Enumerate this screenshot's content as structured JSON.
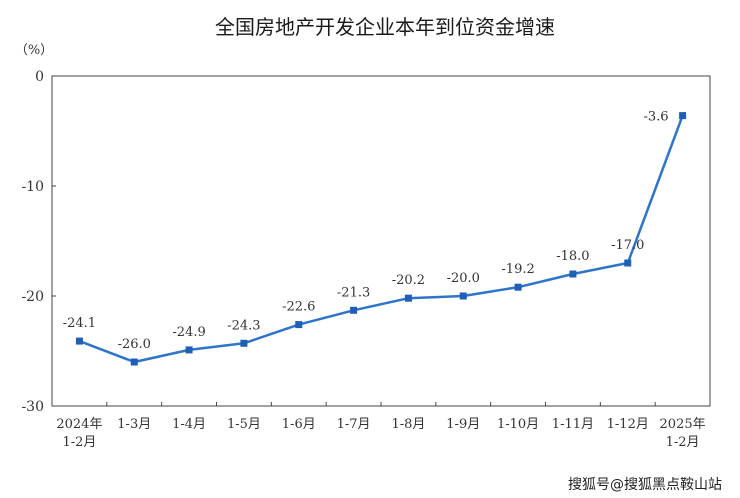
{
  "watermark": "搜狐号@搜狐黑点鞍山站",
  "chart_data": {
    "type": "line",
    "title": "全国房地产开发企业本年到位资金增速",
    "unit_label": "（%）",
    "categories": [
      [
        "2024年",
        "1-2月"
      ],
      [
        "1-3月"
      ],
      [
        "1-4月"
      ],
      [
        "1-5月"
      ],
      [
        "1-6月"
      ],
      [
        "1-7月"
      ],
      [
        "1-8月"
      ],
      [
        "1-9月"
      ],
      [
        "1-10月"
      ],
      [
        "1-11月"
      ],
      [
        "1-12月"
      ],
      [
        "2025年",
        "1-2月"
      ]
    ],
    "values": [
      -24.1,
      -26.0,
      -24.9,
      -24.3,
      -22.6,
      -21.3,
      -20.2,
      -20.0,
      -19.2,
      -18.0,
      -17.0,
      -3.6
    ],
    "data_labels": [
      "-24.1",
      "-26.0",
      "-24.9",
      "-24.3",
      "-22.6",
      "-21.3",
      "-20.2",
      "-20.0",
      "-19.2",
      "-18.0",
      "-17.0",
      "-3.6"
    ],
    "ylim": [
      -30,
      0
    ],
    "yticks": [
      0,
      -10,
      -20,
      -30
    ],
    "ytick_labels": [
      "0",
      "-10",
      "-20",
      "-30"
    ],
    "grid": false,
    "line_color": "#2e74c9",
    "marker_color": "#1f5fb5"
  }
}
